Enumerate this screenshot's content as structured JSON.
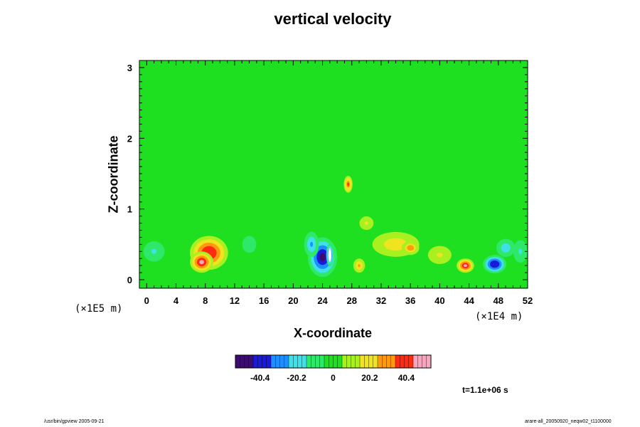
{
  "chart_data": {
    "type": "heatmap",
    "title": "vertical velocity",
    "xlabel": "X-coordinate",
    "ylabel": "Z-coordinate",
    "x_unit": "(×1E4 m)",
    "z_unit": "(×1E5 m)",
    "x_ticks": [
      "0",
      "4",
      "8",
      "12",
      "16",
      "20",
      "24",
      "28",
      "32",
      "36",
      "40",
      "44",
      "48",
      "52"
    ],
    "xlim": [
      -1,
      52
    ],
    "z_ticks": [
      "0",
      "1",
      "2",
      "3"
    ],
    "zlim": [
      -0.12,
      3.1
    ],
    "colorbar": {
      "ticks": [
        -40.4,
        -20.2,
        0,
        20.2,
        40.4
      ],
      "labels": [
        "-40.4",
        "-20.2",
        "0",
        "20.2",
        "40.4"
      ],
      "range": [
        -54,
        54
      ],
      "colors": [
        "#3a0d6e",
        "#1a1ad8",
        "#1e8fff",
        "#40e0e8",
        "#2ee86a",
        "#1ee020",
        "#a8f020",
        "#f0e420",
        "#ff9a10",
        "#ff2a10",
        "#f4a8c0"
      ]
    },
    "background_value": 0,
    "features": [
      {
        "x": 8.5,
        "z": 0.38,
        "value": 44,
        "rx": 2.6,
        "rz": 0.24
      },
      {
        "x": 7.5,
        "z": 0.25,
        "value": 48,
        "rx": 1.6,
        "rz": 0.15
      },
      {
        "x": 24,
        "z": 0.32,
        "value": -48,
        "rx": 2.0,
        "rz": 0.28
      },
      {
        "x": 25,
        "z": 0.35,
        "value": -54,
        "rx": 0.5,
        "rz": 0.16
      },
      {
        "x": 22.5,
        "z": 0.5,
        "value": -30,
        "rx": 1.0,
        "rz": 0.18
      },
      {
        "x": 43.5,
        "z": 0.2,
        "value": 45,
        "rx": 1.2,
        "rz": 0.1
      },
      {
        "x": 47.5,
        "z": 0.22,
        "value": -44,
        "rx": 1.6,
        "rz": 0.13
      },
      {
        "x": 49,
        "z": 0.45,
        "value": -22,
        "rx": 1.6,
        "rz": 0.16
      },
      {
        "x": 29,
        "z": 0.2,
        "value": 30,
        "rx": 0.8,
        "rz": 0.1
      },
      {
        "x": 34,
        "z": 0.5,
        "value": 20,
        "rx": 4.0,
        "rz": 0.22
      },
      {
        "x": 36,
        "z": 0.45,
        "value": 32,
        "rx": 1.2,
        "rz": 0.1
      },
      {
        "x": 27.5,
        "z": 1.35,
        "value": 38,
        "rx": 0.6,
        "rz": 0.12
      },
      {
        "x": 1,
        "z": 0.4,
        "value": -16,
        "rx": 1.8,
        "rz": 0.18
      },
      {
        "x": 14,
        "z": 0.5,
        "value": -10,
        "rx": 1.6,
        "rz": 0.2
      },
      {
        "x": 51,
        "z": 0.4,
        "value": -15,
        "rx": 1.2,
        "rz": 0.2
      },
      {
        "x": 40,
        "z": 0.35,
        "value": 15,
        "rx": 2.0,
        "rz": 0.16
      },
      {
        "x": 30,
        "z": 0.8,
        "value": 18,
        "rx": 1.2,
        "rz": 0.12
      }
    ],
    "time_label": "t=1.1e+06 s",
    "footer_left": "/usr/bin/gpview 2005-09-21",
    "footer_right": "arare-all_20050920_neqw02_t1100000"
  }
}
